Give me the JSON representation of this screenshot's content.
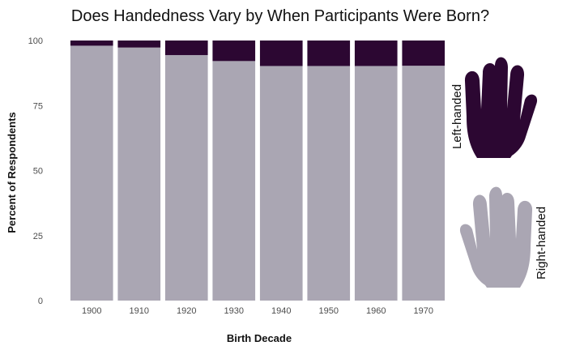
{
  "chart_data": {
    "type": "bar",
    "stacked": true,
    "title": "Does Handedness Vary by When Participants Were Born?",
    "xlabel": "Birth Decade",
    "ylabel": "Percent of Respondents",
    "categories": [
      "1900",
      "1910",
      "1920",
      "1930",
      "1940",
      "1950",
      "1960",
      "1970"
    ],
    "series": [
      {
        "name": "Right-handed",
        "color": "#aaa6b3",
        "values": [
          98.0,
          97.3,
          94.4,
          92.1,
          90.2,
          90.2,
          90.2,
          90.3
        ]
      },
      {
        "name": "Left-handed",
        "color": "#2c0732",
        "values": [
          2.0,
          2.7,
          5.6,
          7.9,
          9.8,
          9.8,
          9.8,
          9.7
        ]
      }
    ],
    "ylim": [
      0,
      100
    ],
    "yticks": [
      "0",
      "25",
      "50",
      "75",
      "100"
    ],
    "grid": false,
    "legend": {
      "placement": "right",
      "items": [
        {
          "label": "Left-handed",
          "icon": "hand-icon",
          "color": "#2c0732"
        },
        {
          "label": "Right-handed",
          "icon": "hand-icon",
          "color": "#aaa6b3"
        }
      ]
    }
  }
}
